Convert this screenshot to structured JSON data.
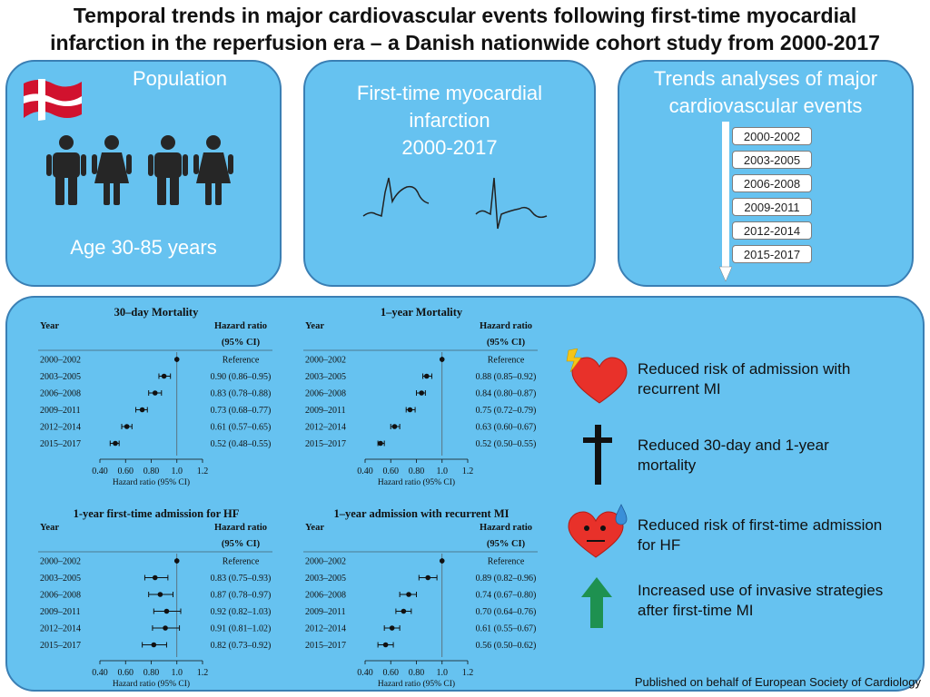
{
  "title": {
    "line1": "Temporal trends in major cardiovascular events following first-time myocardial",
    "line2": "infarction in the reperfusion era – a Danish nationwide cohort study from 2000-2017"
  },
  "population": {
    "heading": "Population",
    "age": "Age 30-85 years",
    "icons": [
      "denmark-flag-icon",
      "male-person-icon",
      "female-person-icon"
    ]
  },
  "mi": {
    "line1": "First-time myocardial",
    "line2": "infarction",
    "line3": "2000-2017"
  },
  "trends": {
    "line1": "Trends analyses of major",
    "line2": "cardiovascular events",
    "periods": [
      "2000-2002",
      "2003-2005",
      "2006-2008",
      "2009-2011",
      "2012-2014",
      "2015-2017"
    ]
  },
  "chart_data": [
    {
      "type": "forest",
      "title": "30–day Mortality",
      "col_year": "Year",
      "col_hr1": "Hazard ratio",
      "col_hr2": "(95% CI)",
      "xlabel": "Hazard ratio (95% CI)",
      "ticks": [
        0.4,
        0.6,
        0.8,
        1.0,
        1.2
      ],
      "tick_labels": [
        "0.40",
        "0.60",
        "0.80",
        "1.0",
        "1.2"
      ],
      "rows": [
        {
          "year": "2000–2002",
          "label": "Reference",
          "hr": 1.0,
          "lo": 1.0,
          "hi": 1.0
        },
        {
          "year": "2003–2005",
          "label": "0.90 (0.86–0.95)",
          "hr": 0.9,
          "lo": 0.86,
          "hi": 0.95
        },
        {
          "year": "2006–2008",
          "label": "0.83 (0.78–0.88)",
          "hr": 0.83,
          "lo": 0.78,
          "hi": 0.88
        },
        {
          "year": "2009–2011",
          "label": "0.73 (0.68–0.77)",
          "hr": 0.73,
          "lo": 0.68,
          "hi": 0.77
        },
        {
          "year": "2012–2014",
          "label": "0.61 (0.57–0.65)",
          "hr": 0.61,
          "lo": 0.57,
          "hi": 0.65
        },
        {
          "year": "2015–2017",
          "label": "0.52 (0.48–0.55)",
          "hr": 0.52,
          "lo": 0.48,
          "hi": 0.55
        }
      ]
    },
    {
      "type": "forest",
      "title": "1–year Mortality",
      "col_year": "Year",
      "col_hr1": "Hazard ratio",
      "col_hr2": "(95% CI)",
      "xlabel": "Hazard ratio (95% CI)",
      "ticks": [
        0.4,
        0.6,
        0.8,
        1.0,
        1.2
      ],
      "tick_labels": [
        "0.40",
        "0.60",
        "0.80",
        "1.0",
        "1.2"
      ],
      "rows": [
        {
          "year": "2000–2002",
          "label": "Reference",
          "hr": 1.0,
          "lo": 1.0,
          "hi": 1.0
        },
        {
          "year": "2003–2005",
          "label": "0.88 (0.85–0.92)",
          "hr": 0.88,
          "lo": 0.85,
          "hi": 0.92
        },
        {
          "year": "2006–2008",
          "label": "0.84 (0.80–0.87)",
          "hr": 0.84,
          "lo": 0.8,
          "hi": 0.87
        },
        {
          "year": "2009–2011",
          "label": "0.75 (0.72–0.79)",
          "hr": 0.75,
          "lo": 0.72,
          "hi": 0.79
        },
        {
          "year": "2012–2014",
          "label": "0.63 (0.60–0.67)",
          "hr": 0.63,
          "lo": 0.6,
          "hi": 0.67
        },
        {
          "year": "2015–2017",
          "label": "0.52 (0.50–0.55)",
          "hr": 0.52,
          "lo": 0.5,
          "hi": 0.55
        }
      ]
    },
    {
      "type": "forest",
      "title": "1-year first-time admission for HF",
      "col_year": "Year",
      "col_hr1": "Hazard ratio",
      "col_hr2": "(95% CI)",
      "xlabel": "Hazard ratio (95% CI)",
      "ticks": [
        0.4,
        0.6,
        0.8,
        1.0,
        1.2
      ],
      "tick_labels": [
        "0.40",
        "0.60",
        "0.80",
        "1.0",
        "1.2"
      ],
      "rows": [
        {
          "year": "2000–2002",
          "label": "Reference",
          "hr": 1.0,
          "lo": 1.0,
          "hi": 1.0
        },
        {
          "year": "2003–2005",
          "label": "0.83 (0.75–0.93)",
          "hr": 0.83,
          "lo": 0.75,
          "hi": 0.93
        },
        {
          "year": "2006–2008",
          "label": "0.87 (0.78–0.97)",
          "hr": 0.87,
          "lo": 0.78,
          "hi": 0.97
        },
        {
          "year": "2009–2011",
          "label": "0.92 (0.82–1.03)",
          "hr": 0.92,
          "lo": 0.82,
          "hi": 1.03
        },
        {
          "year": "2012–2014",
          "label": "0.91 (0.81–1.02)",
          "hr": 0.91,
          "lo": 0.81,
          "hi": 1.02
        },
        {
          "year": "2015–2017",
          "label": "0.82 (0.73–0.92)",
          "hr": 0.82,
          "lo": 0.73,
          "hi": 0.92
        }
      ]
    },
    {
      "type": "forest",
      "title": "1–year admission with recurrent MI",
      "col_year": "Year",
      "col_hr1": "Hazard ratio",
      "col_hr2": "(95% CI)",
      "xlabel": "Hazard ratio (95% CI)",
      "ticks": [
        0.4,
        0.6,
        0.8,
        1.0,
        1.2
      ],
      "tick_labels": [
        "0.40",
        "0.60",
        "0.80",
        "1.0",
        "1.2"
      ],
      "rows": [
        {
          "year": "2000–2002",
          "label": "Reference",
          "hr": 1.0,
          "lo": 1.0,
          "hi": 1.0
        },
        {
          "year": "2003–2005",
          "label": "0.89 (0.82–0.96)",
          "hr": 0.89,
          "lo": 0.82,
          "hi": 0.96
        },
        {
          "year": "2006–2008",
          "label": "0.74 (0.67–0.80)",
          "hr": 0.74,
          "lo": 0.67,
          "hi": 0.8
        },
        {
          "year": "2009–2011",
          "label": "0.70 (0.64–0.76)",
          "hr": 0.7,
          "lo": 0.64,
          "hi": 0.76
        },
        {
          "year": "2012–2014",
          "label": "0.61 (0.55–0.67)",
          "hr": 0.61,
          "lo": 0.55,
          "hi": 0.67
        },
        {
          "year": "2015–2017",
          "label": "0.56 (0.50–0.62)",
          "hr": 0.56,
          "lo": 0.5,
          "hi": 0.62
        }
      ]
    }
  ],
  "findings": [
    {
      "line1": "Reduced risk of admission with",
      "line2": "recurrent MI",
      "icon": "heart-lightning-icon"
    },
    {
      "line1": "Reduced 30-day and 1-year",
      "line2": "mortality",
      "icon": "cross-icon"
    },
    {
      "line1": "Reduced risk of first-time admission",
      "line2": "for HF",
      "icon": "sad-heart-icon"
    },
    {
      "line1": "Increased use of invasive strategies",
      "line2": "after first-time MI",
      "icon": "up-arrow-icon"
    }
  ],
  "footer": "Published on behalf of European Society of Cardiology",
  "colors": {
    "panel": "#66c2f0",
    "panel_border": "#3a7fb4",
    "heart": "#e8312a",
    "arrow": "#1e9150",
    "person": "#262626"
  }
}
